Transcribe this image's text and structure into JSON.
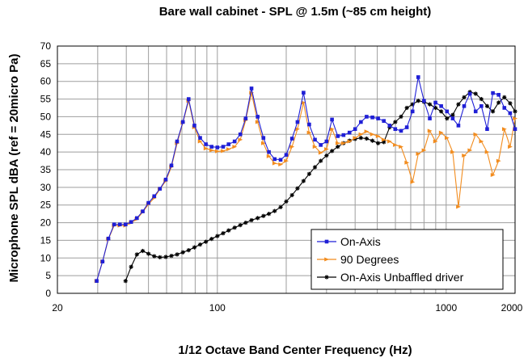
{
  "chart_data": {
    "type": "line",
    "title": "Bare wall cabinet - SPL @ 1.5m (~85 cm height)",
    "xlabel": "1/12 Octave Band Center Frequency (Hz)",
    "ylabel": "Microphone SPL dBA (ref = 20micro Pa)",
    "xscale": "log",
    "xlim": [
      20,
      2000
    ],
    "ylim": [
      0,
      70
    ],
    "x_ticks": [
      20,
      100,
      1000,
      2000
    ],
    "x_tick_labels": [
      "20",
      "100",
      "1000",
      "2000"
    ],
    "y_ticks": [
      0,
      5,
      10,
      15,
      20,
      25,
      30,
      35,
      40,
      45,
      50,
      55,
      60,
      65,
      70
    ],
    "y_tick_labels": [
      "0",
      "5",
      "10",
      "15",
      "20",
      "25",
      "30",
      "35",
      "40",
      "45",
      "50",
      "55",
      "60",
      "65",
      "70"
    ],
    "grid": true,
    "legend_position": "bottom-right",
    "x": [
      29.7,
      31.5,
      33.4,
      35.4,
      37.5,
      39.7,
      42.0,
      44.5,
      47.2,
      50.0,
      53.0,
      56.1,
      59.5,
      63.0,
      66.7,
      70.7,
      74.9,
      79.4,
      84.1,
      89.1,
      94.4,
      100,
      106,
      112,
      119,
      126,
      133,
      141,
      150,
      159,
      168,
      178,
      189,
      200,
      212,
      224,
      238,
      252,
      267,
      283,
      300,
      317,
      336,
      356,
      378,
      400,
      424,
      449,
      476,
      504,
      534,
      566,
      599,
      635,
      673,
      713,
      755,
      800,
      848,
      898,
      951,
      1008,
      1068,
      1131,
      1198,
      1270,
      1345,
      1425,
      1510,
      1600,
      1695,
      1796,
      1903,
      2000
    ],
    "series": [
      {
        "name": "On-Axis",
        "color": "#1f1fd6",
        "marker": "square",
        "values": [
          3.5,
          9,
          15.5,
          19.5,
          19.5,
          19.5,
          20.2,
          21.3,
          23.2,
          25.6,
          27.5,
          29.6,
          32.2,
          36.2,
          43.0,
          48.5,
          55.0,
          47.5,
          44.0,
          42.2,
          41.5,
          41.3,
          41.5,
          42.2,
          43.0,
          45.0,
          49.5,
          58.0,
          50.0,
          44.0,
          40.0,
          38.0,
          37.8,
          39.2,
          43.8,
          48.5,
          56.8,
          47.8,
          43.5,
          42.0,
          43.0,
          49.2,
          44.5,
          44.8,
          45.5,
          46.5,
          48.5,
          50.0,
          49.8,
          49.5,
          48.8,
          47.5,
          46.5,
          46.0,
          47.0,
          51.5,
          61.2,
          54.5,
          49.5,
          54.0,
          53.0,
          51.5,
          49.5,
          47.5,
          53.0,
          56.5,
          51.5,
          53.0,
          46.5,
          56.7,
          56.2,
          52.5,
          51.0,
          46.5
        ]
      },
      {
        "name": "90 Degrees",
        "color": "#f28c1e",
        "marker": "triangle",
        "values": [
          3.5,
          9,
          15.3,
          19.2,
          19.2,
          19.2,
          20.0,
          21.0,
          23.0,
          25.2,
          27.0,
          29.5,
          31.8,
          35.8,
          42.5,
          48.3,
          54.5,
          47.0,
          43.0,
          41.0,
          40.5,
          40.2,
          40.3,
          40.8,
          41.5,
          43.5,
          49.0,
          56.8,
          48.5,
          42.5,
          38.8,
          36.8,
          36.5,
          37.5,
          41.5,
          46.5,
          54.0,
          45.5,
          41.5,
          39.8,
          40.8,
          46.5,
          42.5,
          42.5,
          43.0,
          44.0,
          45.0,
          45.8,
          45.0,
          44.5,
          43.5,
          43.0,
          42.0,
          41.5,
          37.0,
          31.5,
          39.5,
          40.5,
          46.0,
          43.0,
          45.5,
          44.0,
          40.0,
          24.5,
          39.0,
          40.5,
          45.0,
          43.0,
          40.0,
          33.5,
          37.5,
          46.5,
          41.5,
          49.5
        ]
      },
      {
        "name": "On-Axis Unbaffled driver",
        "color": "#000000",
        "marker": "star",
        "values": [
          null,
          null,
          null,
          null,
          null,
          3.5,
          7.5,
          11.0,
          12.0,
          11.2,
          10.5,
          10.2,
          10.3,
          10.6,
          11.0,
          11.6,
          12.2,
          13.0,
          13.8,
          14.6,
          15.4,
          16.2,
          17.0,
          17.8,
          18.6,
          19.3,
          20.0,
          20.7,
          21.3,
          21.9,
          22.5,
          23.3,
          24.4,
          26.0,
          27.8,
          29.7,
          31.8,
          33.8,
          35.7,
          37.5,
          39.0,
          40.3,
          41.5,
          42.5,
          43.2,
          43.7,
          44.0,
          43.8,
          43.2,
          42.5,
          42.8,
          47.0,
          48.5,
          50.0,
          52.5,
          53.5,
          54.5,
          54.2,
          53.5,
          52.5,
          51.5,
          49.5,
          50.5,
          53.5,
          55.5,
          57.0,
          56.5,
          55.0,
          53.0,
          51.5,
          54.0,
          55.5,
          53.8,
          51.5
        ]
      }
    ]
  }
}
